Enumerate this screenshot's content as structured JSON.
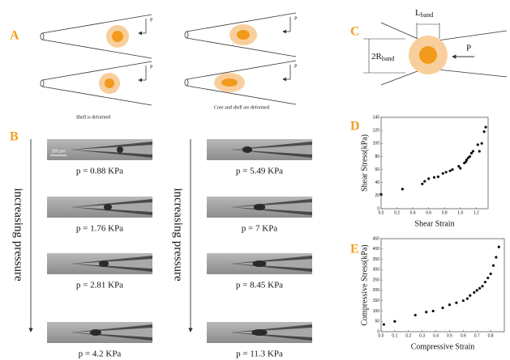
{
  "panel_A": {
    "label": "A",
    "pressure_labels": [
      "P",
      "P",
      "P",
      "P"
    ],
    "captions": [
      "Shell is deformed",
      "Core and shell are deformed"
    ]
  },
  "panel_B": {
    "label": "B",
    "axis_labels": [
      "increasing pressure",
      "increasing pressure"
    ],
    "scale_bar": "100 μm",
    "columns": [
      [
        "p = 0.88 KPa",
        "p = 1.76 KPa",
        "p = 2.81 KPa",
        "p = 4.2 KPa"
      ],
      [
        "p = 5.49 KPa",
        "p = 7 KPa",
        "p = 8.45 KPa",
        "p = 11.3 KPa"
      ]
    ]
  },
  "panel_C": {
    "label": "C",
    "length_symbol": "L",
    "length_subscript": "band",
    "radius_symbol": "2R",
    "radius_subscript": "band",
    "pressure_label": "P"
  },
  "chart_data": [
    {
      "type": "scatter",
      "panel_label": "D",
      "xlabel": "Shear Strain",
      "ylabel": "Shear Stress(kPa)",
      "color": "#111111",
      "x": [
        0.0,
        0.27,
        0.52,
        0.55,
        0.6,
        0.67,
        0.72,
        0.78,
        0.82,
        0.87,
        0.9,
        0.98,
        1.0,
        1.05,
        1.07,
        1.08,
        1.1,
        1.12,
        1.14,
        1.16,
        1.22,
        1.24,
        1.27,
        1.3,
        1.32
      ],
      "values": [
        22,
        30,
        38,
        42,
        46,
        48,
        49,
        54,
        56,
        58,
        60,
        65,
        62,
        70,
        72,
        75,
        78,
        80,
        85,
        88,
        98,
        88,
        100,
        118,
        125
      ],
      "xlim": [
        0,
        1.35
      ],
      "ylim": [
        0,
        140
      ],
      "xticks": [
        {
          "value": 0,
          "label": "0.0"
        },
        {
          "value": 0.2,
          "label": "0.2"
        },
        {
          "value": 0.4,
          "label": "0.4"
        },
        {
          "value": 0.6,
          "label": "0.6"
        },
        {
          "value": 0.8,
          "label": "0.8"
        },
        {
          "value": 1,
          "label": "1.0"
        },
        {
          "value": 1.2,
          "label": "1.2"
        }
      ],
      "yticks": [
        0,
        20,
        40,
        60,
        80,
        100,
        120,
        140
      ]
    },
    {
      "type": "scatter",
      "panel_label": "E",
      "xlabel": "Compressive Strain",
      "ylabel": "Compressive Stress(kPa)",
      "color": "#111111",
      "x": [
        0.02,
        0.1,
        0.25,
        0.33,
        0.38,
        0.45,
        0.5,
        0.55,
        0.6,
        0.63,
        0.65,
        0.68,
        0.7,
        0.72,
        0.74,
        0.76,
        0.78,
        0.8,
        0.82,
        0.84,
        0.86
      ],
      "values": [
        35,
        50,
        80,
        95,
        100,
        115,
        130,
        140,
        150,
        160,
        175,
        190,
        200,
        210,
        220,
        240,
        260,
        280,
        320,
        360,
        410
      ],
      "xlim": [
        0,
        0.9
      ],
      "ylim": [
        0,
        450
      ],
      "xticks": [
        {
          "value": 0,
          "label": "0.0"
        },
        {
          "value": 0.1,
          "label": "0.1"
        },
        {
          "value": 0.2,
          "label": "0.2"
        },
        {
          "value": 0.3,
          "label": "0.3"
        },
        {
          "value": 0.4,
          "label": "0.4"
        },
        {
          "value": 0.5,
          "label": "0.5"
        },
        {
          "value": 0.6,
          "label": "0.6"
        },
        {
          "value": 0.7,
          "label": "0.7"
        },
        {
          "value": 0.8,
          "label": "0.8"
        }
      ],
      "yticks": [
        0,
        50,
        100,
        150,
        200,
        250,
        300,
        350,
        400,
        450
      ]
    }
  ]
}
